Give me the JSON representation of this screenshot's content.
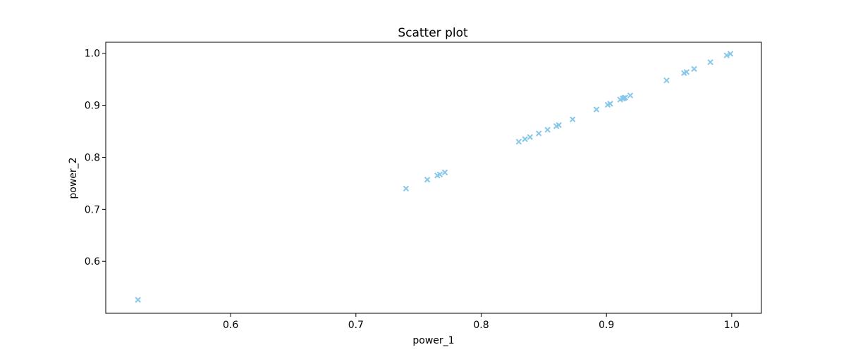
{
  "chart_data": {
    "type": "scatter",
    "title": "Scatter plot",
    "xlabel": "power_1",
    "ylabel": "power_2",
    "xlim": [
      0.5003,
      1.0237
    ],
    "ylim": [
      0.5001,
      1.0213
    ],
    "xticks": [
      0.6,
      0.7,
      0.8,
      0.9,
      1.0
    ],
    "xtick_labels": [
      "0.6",
      "0.7",
      "0.8",
      "0.9",
      "1.0"
    ],
    "yticks": [
      0.6,
      0.7,
      0.8,
      0.9,
      1.0
    ],
    "ytick_labels": [
      "0.6",
      "0.7",
      "0.8",
      "0.9",
      "1.0"
    ],
    "grid": false,
    "marker": "x",
    "color": "#87c7ea",
    "series": [
      {
        "x": [
          0.526,
          0.74,
          0.757,
          0.765,
          0.767,
          0.771,
          0.83,
          0.835,
          0.839,
          0.846,
          0.853,
          0.86,
          0.862,
          0.873,
          0.892,
          0.901,
          0.903,
          0.911,
          0.913,
          0.914,
          0.915,
          0.919,
          0.948,
          0.962,
          0.964,
          0.97,
          0.983,
          0.996,
          0.999
        ],
        "y": [
          0.526,
          0.74,
          0.757,
          0.765,
          0.767,
          0.771,
          0.83,
          0.835,
          0.839,
          0.846,
          0.853,
          0.86,
          0.862,
          0.873,
          0.892,
          0.901,
          0.903,
          0.911,
          0.913,
          0.914,
          0.915,
          0.919,
          0.948,
          0.962,
          0.964,
          0.97,
          0.983,
          0.996,
          0.999
        ]
      }
    ]
  }
}
